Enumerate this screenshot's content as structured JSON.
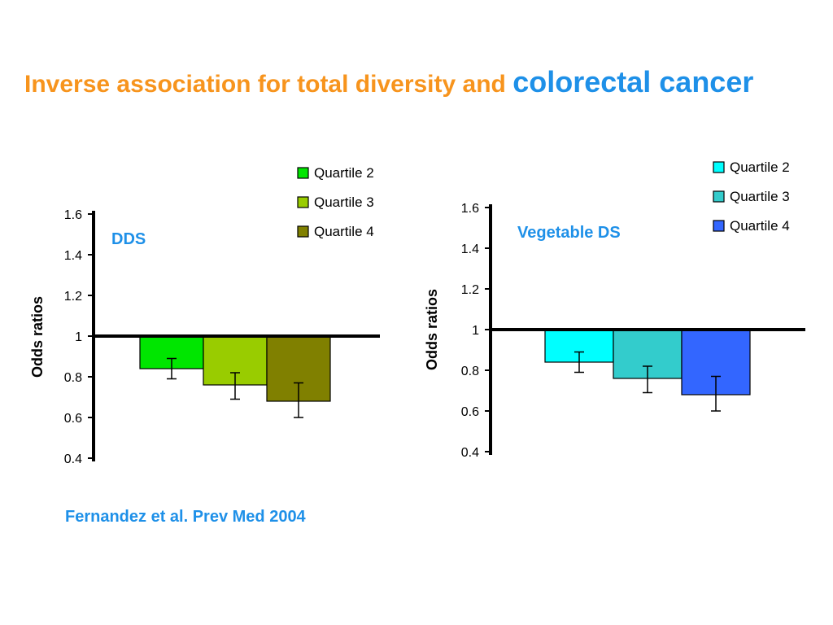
{
  "slide": {
    "title_part1": "Inverse association for total diversity and ",
    "title_part2": "colorectal cancer",
    "citation": "Fernandez et al. Prev Med 2004"
  },
  "chart_data": [
    {
      "type": "bar",
      "title": "DDS",
      "ylabel": "Odds ratios",
      "xlabel": "",
      "ylim": [
        0.4,
        1.6
      ],
      "yticks": [
        "1.6",
        "1.4",
        "1.2",
        "1",
        "0.8",
        "0.6",
        "0.4"
      ],
      "baseline": 1,
      "legend_position": "top-right",
      "series": [
        {
          "name": "Quartile 2",
          "value": 0.84,
          "err_low": 0.79,
          "err_high": 0.89,
          "color": "#00e600"
        },
        {
          "name": "Quartile 3",
          "value": 0.76,
          "err_low": 0.69,
          "err_high": 0.82,
          "color": "#99cc00"
        },
        {
          "name": "Quartile 4",
          "value": 0.68,
          "err_low": 0.6,
          "err_high": 0.77,
          "color": "#808000"
        }
      ]
    },
    {
      "type": "bar",
      "title": "Vegetable DS",
      "ylabel": "Odds ratios",
      "xlabel": "",
      "ylim": [
        0.4,
        1.6
      ],
      "yticks": [
        "1.6",
        "1.4",
        "1.2",
        "1",
        "0.8",
        "0.6",
        "0.4"
      ],
      "baseline": 1,
      "legend_position": "top-right",
      "series": [
        {
          "name": "Quartile 2",
          "value": 0.84,
          "err_low": 0.79,
          "err_high": 0.89,
          "color": "#00ffff"
        },
        {
          "name": "Quartile 3",
          "value": 0.76,
          "err_low": 0.69,
          "err_high": 0.82,
          "color": "#33cccc"
        },
        {
          "name": "Quartile 4",
          "value": 0.68,
          "err_low": 0.6,
          "err_high": 0.77,
          "color": "#3366ff"
        }
      ]
    }
  ]
}
